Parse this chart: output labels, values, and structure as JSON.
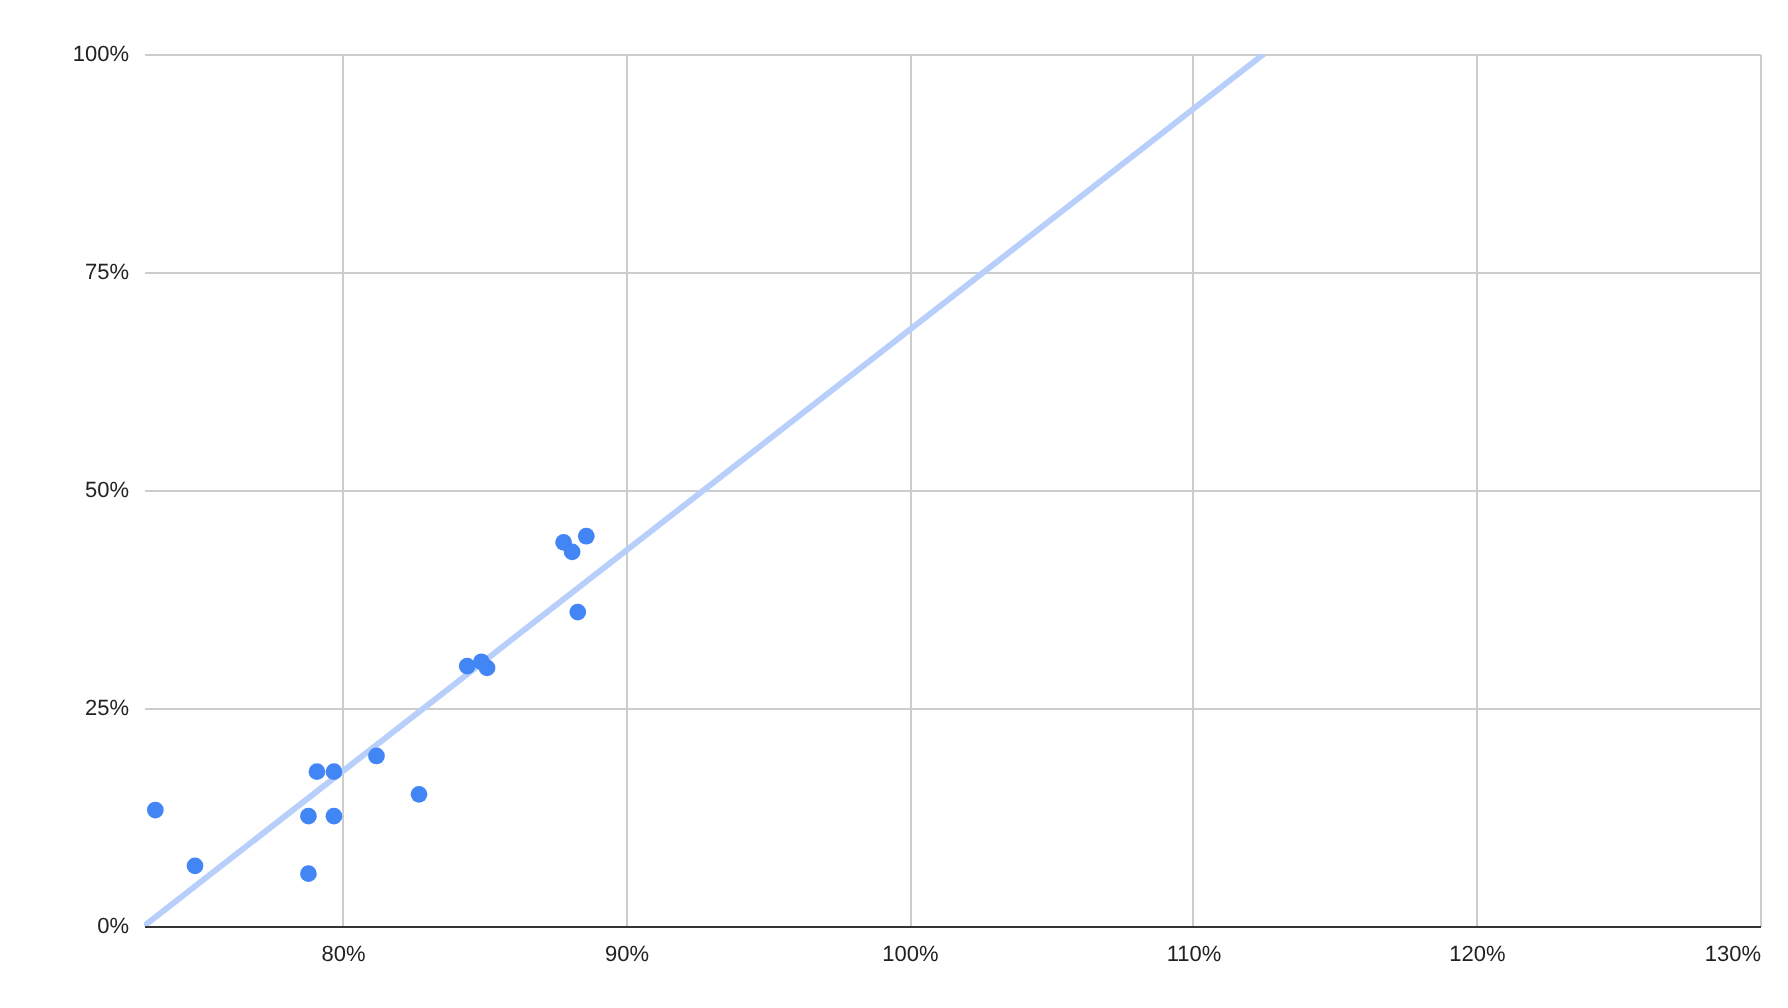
{
  "chart_data": {
    "type": "scatter",
    "xlim": [
      73,
      130
    ],
    "ylim": [
      0,
      100
    ],
    "xticks": [
      {
        "value": 80,
        "label": "80%"
      },
      {
        "value": 90,
        "label": "90%"
      },
      {
        "value": 100,
        "label": "100%"
      },
      {
        "value": 110,
        "label": "110%"
      },
      {
        "value": 120,
        "label": "120%"
      },
      {
        "value": 130,
        "label": "130%"
      }
    ],
    "yticks": [
      {
        "value": 0,
        "label": "0%"
      },
      {
        "value": 25,
        "label": "25%"
      },
      {
        "value": 50,
        "label": "50%"
      },
      {
        "value": 75,
        "label": "75%"
      },
      {
        "value": 100,
        "label": "100%"
      }
    ],
    "grid": true,
    "series": [
      {
        "marker": "circle",
        "color": "#4285f4",
        "x": [
          73.4,
          74.8,
          78.8,
          78.8,
          79.1,
          79.7,
          79.7,
          81.2,
          82.7,
          84.4,
          84.9,
          85.1,
          87.8,
          88.1,
          88.6,
          88.3
        ],
        "values": [
          13.3,
          6.9,
          6.0,
          12.6,
          17.7,
          17.7,
          12.6,
          19.5,
          15.1,
          29.8,
          30.3,
          29.6,
          44.0,
          42.9,
          44.7,
          36.0
        ]
      },
      {
        "type": "line",
        "color": "#b7cffa",
        "x": [
          73,
          112.5
        ],
        "values": [
          0,
          100
        ]
      }
    ]
  }
}
